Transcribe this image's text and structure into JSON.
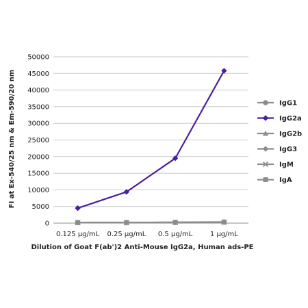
{
  "chart_data": {
    "type": "line",
    "categories": [
      "0.125 µg/mL",
      "0.25 µg/mL",
      "0.5 µg/mL",
      "1 µg/mL"
    ],
    "xlabel": "Dilution of Goat F(ab')2 Anti-Mouse IgG2a, Human ads-PE",
    "ylabel": "FI at Ex-540/25 nm & Em-590/20 nm",
    "ylim": [
      0,
      50000
    ],
    "yticks": [
      0,
      5000,
      10000,
      15000,
      20000,
      25000,
      30000,
      35000,
      40000,
      45000,
      50000
    ],
    "grid": "horizontal",
    "legend_position": "right",
    "series": [
      {
        "name": "IgG1",
        "values": [
          200,
          200,
          250,
          350
        ],
        "color": "#8c8c8c",
        "marker": "circle"
      },
      {
        "name": "IgG2a",
        "values": [
          4500,
          9400,
          19500,
          45800
        ],
        "color": "#4a1e9e",
        "marker": "diamond"
      },
      {
        "name": "IgG2b",
        "values": [
          150,
          150,
          200,
          300
        ],
        "color": "#8c8c8c",
        "marker": "triangle"
      },
      {
        "name": "IgG3",
        "values": [
          150,
          150,
          200,
          300
        ],
        "color": "#8c8c8c",
        "marker": "diamond"
      },
      {
        "name": "IgM",
        "values": [
          150,
          150,
          200,
          300
        ],
        "color": "#8c8c8c",
        "marker": "x"
      },
      {
        "name": "IgA",
        "values": [
          150,
          150,
          200,
          300
        ],
        "color": "#8c8c8c",
        "marker": "square"
      }
    ]
  }
}
